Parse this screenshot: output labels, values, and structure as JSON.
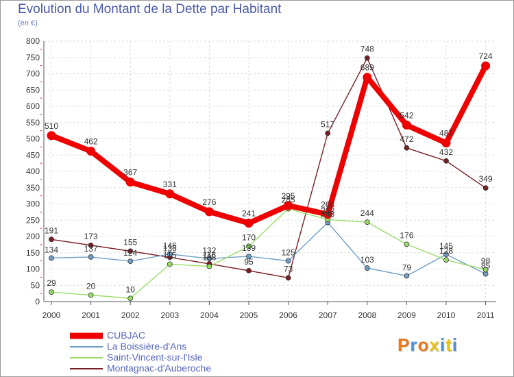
{
  "header": {
    "title": "Evolution du Montant de la Dette par Habitant",
    "subtitle": "(en €)"
  },
  "logo": {
    "text": "Proxiti",
    "colors": [
      "#e87a1c",
      "#4a90d9",
      "#e87a1c",
      "#e8c21c",
      "#4a90d9",
      "#e8c21c",
      "#4a90d9"
    ]
  },
  "chart_data": {
    "type": "line",
    "title": "Evolution du Montant de la Dette par Habitant",
    "subtitle": "(en €)",
    "xlabel": "",
    "ylabel": "",
    "ylim": [
      0,
      800
    ],
    "yticks": [
      0,
      50,
      100,
      150,
      200,
      250,
      300,
      350,
      400,
      450,
      500,
      550,
      600,
      650,
      700,
      750,
      800
    ],
    "x": [
      "2000",
      "2001",
      "2002",
      "2003",
      "2004",
      "2005",
      "2006",
      "2007",
      "2008",
      "2009",
      "2010",
      "2011"
    ],
    "grid": true,
    "legend_position": "bottom-left",
    "series": [
      {
        "name": "CUBJAC",
        "color": "#ee0000",
        "values": [
          510,
          462,
          367,
          331,
          276,
          241,
          295,
          268,
          689,
          542,
          487,
          724
        ],
        "labels": [
          "510",
          "462",
          "367",
          "331",
          "276",
          "241",
          "295",
          "268",
          "689",
          "542",
          "487",
          "724"
        ]
      },
      {
        "name": "La Boissière-d'Ans",
        "color": "#6f9ec6",
        "values": [
          134,
          137,
          124,
          146,
          132,
          139,
          125,
          243,
          103,
          79,
          145,
          85
        ],
        "labels": [
          "134",
          "137",
          "124",
          "146",
          "132",
          "139",
          "125",
          "243",
          "103",
          "79",
          "145",
          "85"
        ]
      },
      {
        "name": "Saint-Vincent-sur-l'Isle",
        "color": "#99dd66",
        "values": [
          29,
          20,
          10,
          115,
          108,
          170,
          285,
          252,
          244,
          176,
          128,
          98
        ],
        "labels": [
          "29",
          "20",
          "10",
          "115",
          "108",
          "170",
          "285",
          "252",
          "244",
          "176",
          "128",
          "98"
        ]
      },
      {
        "name": "Montagnac-d'Auberoche",
        "color": "#7a1e24",
        "values": [
          191,
          173,
          155,
          136,
          116,
          95,
          73,
          517,
          748,
          472,
          432,
          349
        ],
        "labels": [
          "191",
          "173",
          "155",
          "136",
          "116",
          "95",
          "73",
          "517",
          "748",
          "472",
          "432",
          "349"
        ]
      }
    ]
  }
}
